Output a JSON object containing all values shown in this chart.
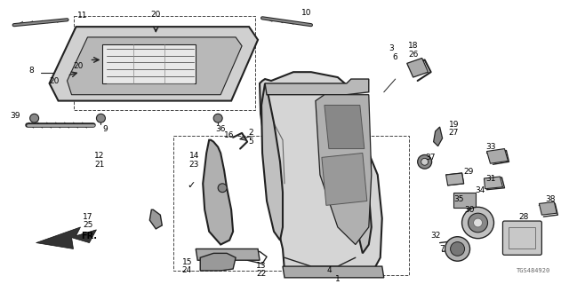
{
  "bg_color": "#ffffff",
  "diagram_id": "TGS484920",
  "fig_width": 6.4,
  "fig_height": 3.2,
  "dpi": 100
}
